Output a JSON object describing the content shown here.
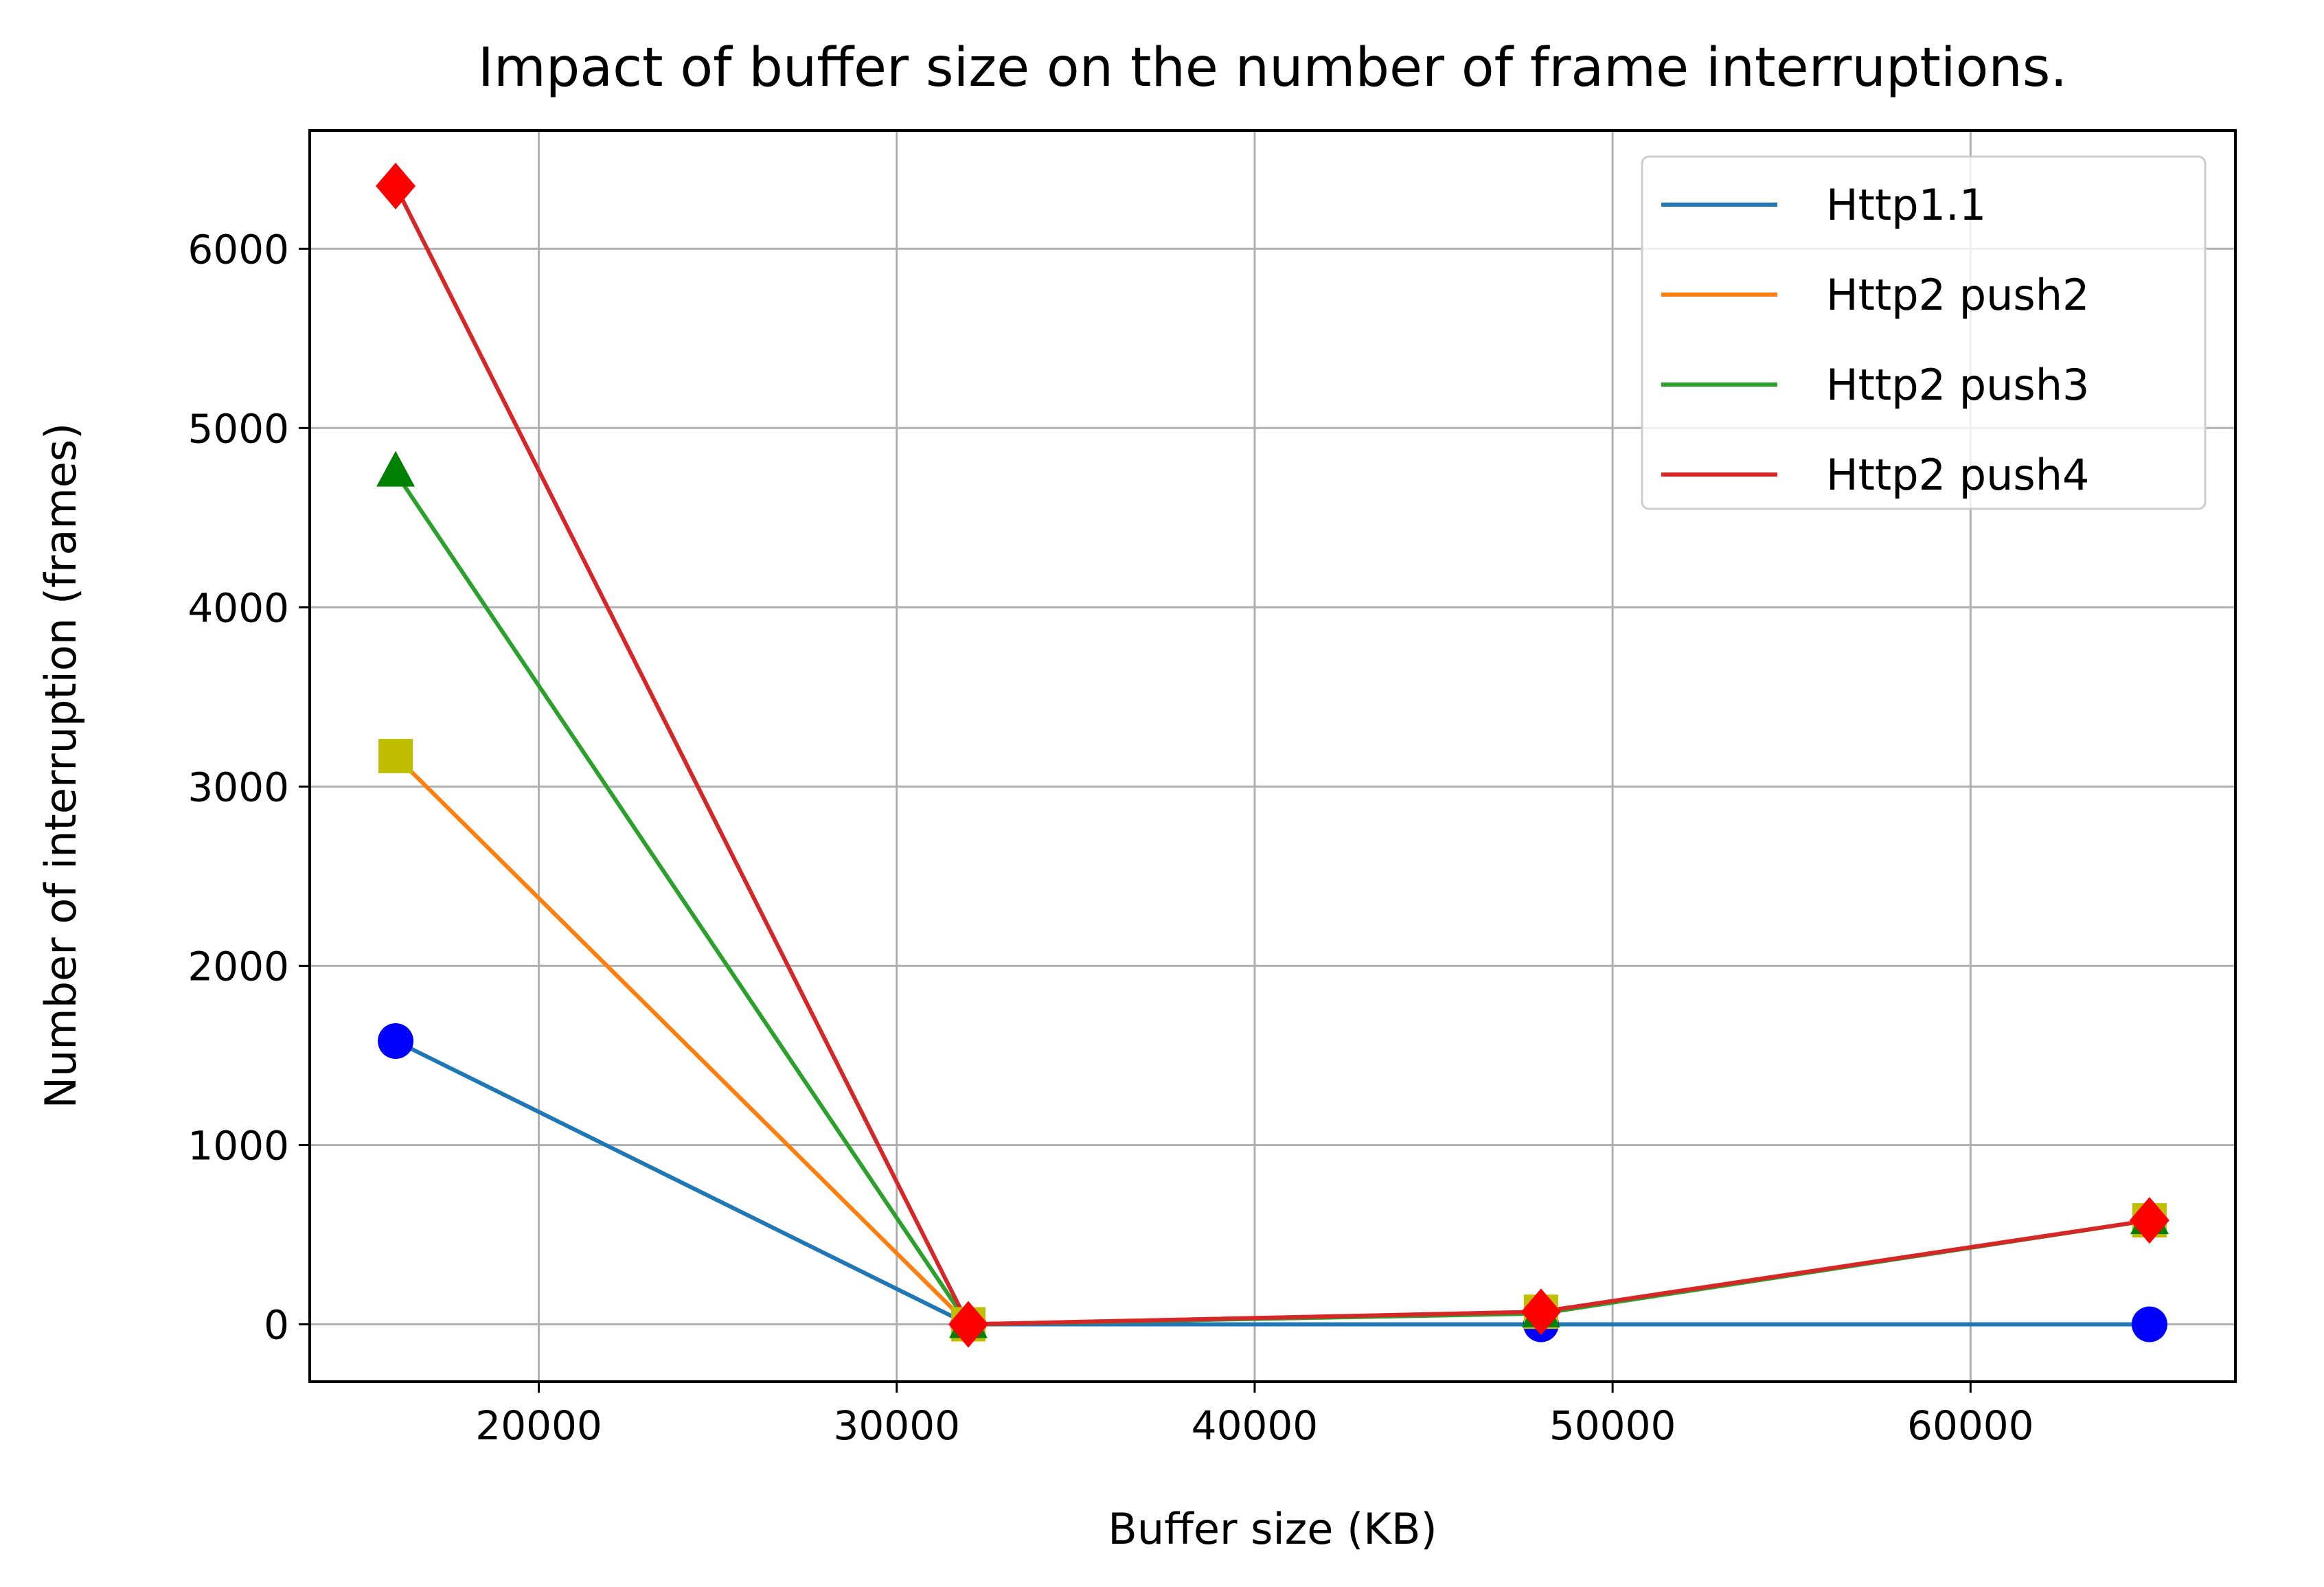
{
  "chart_data": {
    "type": "line",
    "title": "Impact of buffer size on the number of frame interruptions.",
    "xlabel": "Buffer size (KB)",
    "ylabel": "Number of interruption (frames)",
    "xlim": [
      13600,
      67400
    ],
    "ylim": [
      -320,
      6660
    ],
    "xticks": [
      20000,
      30000,
      40000,
      50000,
      60000
    ],
    "yticks": [
      0,
      1000,
      2000,
      3000,
      4000,
      5000,
      6000
    ],
    "grid": true,
    "legend_position": "top-right",
    "x": [
      16000,
      32000,
      48000,
      65000
    ],
    "series": [
      {
        "name": "Http1.1",
        "values": [
          1580,
          0,
          0,
          0
        ],
        "line_color": "#1f77b4",
        "marker": "circle",
        "marker_color": "#0000ff"
      },
      {
        "name": "Http2 push2",
        "values": [
          3170,
          0,
          70,
          580
        ],
        "line_color": "#ff7f0e",
        "marker": "square",
        "marker_color": "#bfbf00"
      },
      {
        "name": "Http2 push3",
        "values": [
          4750,
          0,
          60,
          580
        ],
        "line_color": "#2ca02c",
        "marker": "triangle",
        "marker_color": "#008000"
      },
      {
        "name": "Http2 push4",
        "values": [
          6350,
          0,
          70,
          580
        ],
        "line_color": "#d62728",
        "marker": "diamond",
        "marker_color": "#ff0000"
      }
    ]
  }
}
